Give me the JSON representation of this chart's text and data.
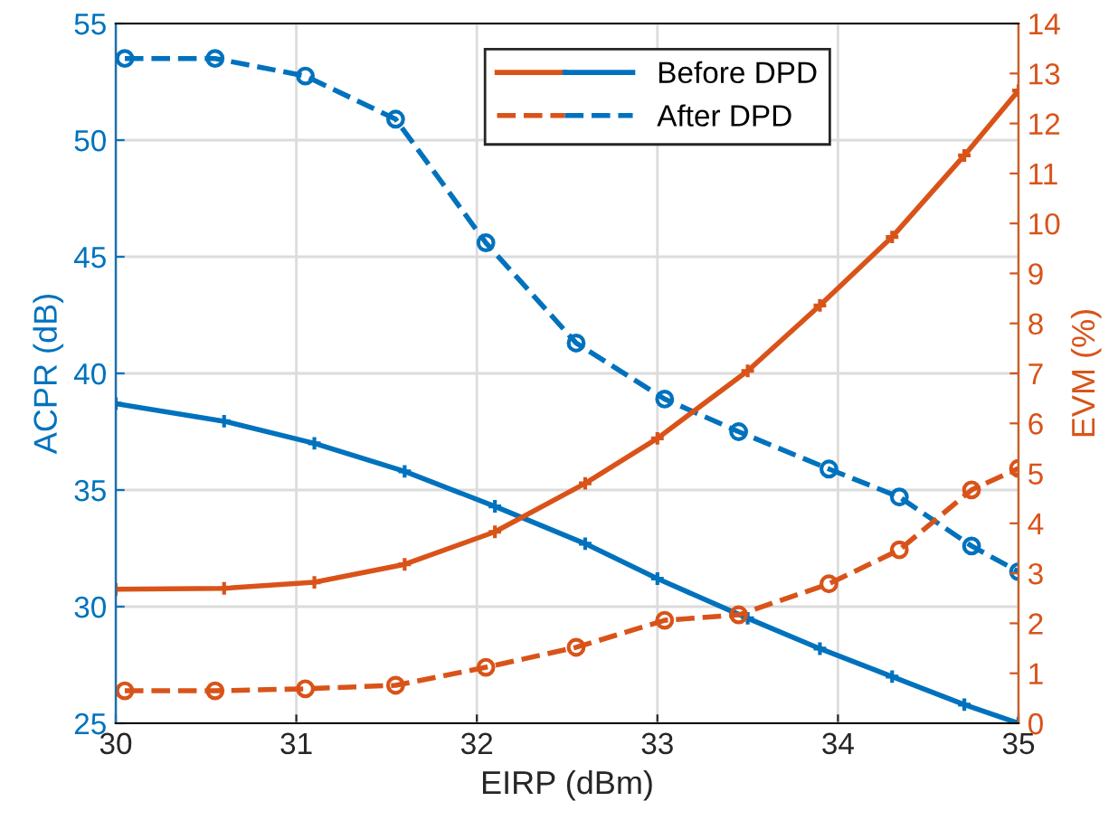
{
  "chart_data": {
    "type": "line",
    "xlabel": "EIRP (dBm)",
    "ylabel": "ACPR (dB)",
    "y2label": "EVM (%)",
    "xlim": [
      30,
      35
    ],
    "xticks": [
      30,
      31,
      32,
      33,
      34,
      35
    ],
    "ylim": [
      25,
      55
    ],
    "yticks": [
      25,
      30,
      35,
      40,
      45,
      50,
      55
    ],
    "y2lim": [
      0,
      14
    ],
    "y2ticks": [
      0,
      1,
      2,
      3,
      4,
      5,
      6,
      7,
      8,
      9,
      10,
      11,
      12,
      13,
      14
    ],
    "grid": true,
    "legend": "top",
    "series": [
      {
        "color": "#d95319",
        "axis": "y2",
        "marker": "cross",
        "line_style": "solid",
        "x": [
          30,
          30.6,
          31.1,
          31.6,
          32.1,
          32.6,
          33.0,
          33.5,
          33.9,
          34.3,
          34.7,
          35
        ],
        "values": [
          2.68,
          2.7,
          2.82,
          3.18,
          3.83,
          4.8,
          5.7,
          7.05,
          8.36,
          9.73,
          11.36,
          12.66
        ]
      },
      {
        "name": "Before DPD",
        "color": "#0072bd",
        "marker": "cross",
        "line_style": "solid",
        "x": [
          30,
          30.6,
          31.1,
          31.6,
          32.1,
          32.6,
          33.0,
          33.5,
          33.9,
          34.3,
          34.7,
          35
        ],
        "values": [
          38.7,
          37.95,
          37.0,
          35.8,
          34.3,
          32.7,
          31.2,
          29.5,
          28.2,
          27.0,
          25.8,
          25.0
        ]
      },
      {
        "color": "#d95319",
        "axis": "y2",
        "marker": "circle",
        "line_style": "dashed",
        "x": [
          30.05,
          30.55,
          31.05,
          31.55,
          32.05,
          32.55,
          33.04,
          33.45,
          33.95,
          34.34,
          34.74,
          35
        ],
        "values": [
          0.65,
          0.65,
          0.69,
          0.76,
          1.12,
          1.52,
          2.06,
          2.17,
          2.79,
          3.47,
          4.67,
          5.1
        ]
      },
      {
        "name": "After DPD",
        "color": "#0072bd",
        "marker": "circle",
        "line_style": "dashed",
        "x": [
          30.05,
          30.55,
          31.05,
          31.55,
          32.05,
          32.55,
          33.04,
          33.45,
          33.95,
          34.34,
          34.74,
          35
        ],
        "values": [
          53.5,
          53.5,
          52.75,
          50.9,
          45.6,
          41.3,
          38.9,
          37.5,
          35.9,
          34.7,
          32.6,
          31.5
        ]
      }
    ]
  }
}
